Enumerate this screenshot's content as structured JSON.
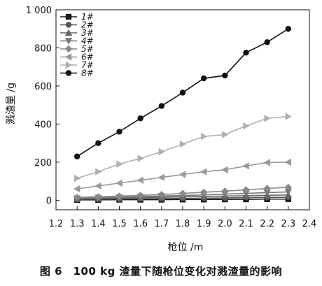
{
  "caption": "图 6　100 kg 渣量下随枪位变化对溅渣量的影响",
  "chart_data": {
    "type": "line",
    "xlabel": "枪位 /m",
    "ylabel": "溅渣量 /g",
    "xlim": [
      1.2,
      2.4
    ],
    "ylim": [
      -50,
      1000
    ],
    "x_ticks": [
      "1.2",
      "1.3",
      "1.4",
      "1.5",
      "1.6",
      "1.7",
      "1.8",
      "1.9",
      "2.0",
      "2.1",
      "2.2",
      "2.3",
      "2.4"
    ],
    "y_ticks": [
      {
        "value": 0,
        "label": "0"
      },
      {
        "value": 200,
        "label": "200"
      },
      {
        "value": 400,
        "label": "400"
      },
      {
        "value": 600,
        "label": "600"
      },
      {
        "value": 800,
        "label": "800"
      },
      {
        "value": 1000,
        "label": "1 000"
      }
    ],
    "legend_position": "top-left",
    "x": [
      1.3,
      1.4,
      1.5,
      1.6,
      1.7,
      1.8,
      1.9,
      2.0,
      2.1,
      2.2,
      2.3
    ],
    "series": [
      {
        "name": "1#",
        "marker": "square",
        "color": "#1a1a1a",
        "values": [
          2,
          2,
          3,
          3,
          3,
          4,
          4,
          5,
          5,
          6,
          6
        ]
      },
      {
        "name": "2#",
        "marker": "circle",
        "color": "#555555",
        "values": [
          5,
          6,
          7,
          8,
          9,
          10,
          11,
          12,
          14,
          15,
          16
        ]
      },
      {
        "name": "3#",
        "marker": "triangle-up",
        "color": "#666666",
        "values": [
          8,
          10,
          12,
          14,
          16,
          18,
          20,
          22,
          24,
          26,
          28
        ]
      },
      {
        "name": "4#",
        "marker": "triangle-down",
        "color": "#777777",
        "values": [
          10,
          13,
          16,
          19,
          22,
          25,
          28,
          32,
          36,
          40,
          44
        ]
      },
      {
        "name": "5#",
        "marker": "diamond",
        "color": "#888888",
        "values": [
          15,
          18,
          22,
          26,
          30,
          36,
          42,
          48,
          55,
          62,
          68
        ]
      },
      {
        "name": "6#",
        "marker": "triangle-left",
        "color": "#999999",
        "values": [
          60,
          75,
          90,
          105,
          120,
          135,
          150,
          160,
          180,
          198,
          200
        ]
      },
      {
        "name": "7#",
        "marker": "triangle-right",
        "color": "#b0b0b0",
        "values": [
          115,
          150,
          190,
          220,
          255,
          295,
          335,
          345,
          390,
          430,
          440
        ]
      },
      {
        "name": "8#",
        "marker": "circle",
        "color": "#111111",
        "values": [
          230,
          300,
          360,
          430,
          495,
          565,
          640,
          655,
          775,
          830,
          900
        ]
      }
    ]
  }
}
